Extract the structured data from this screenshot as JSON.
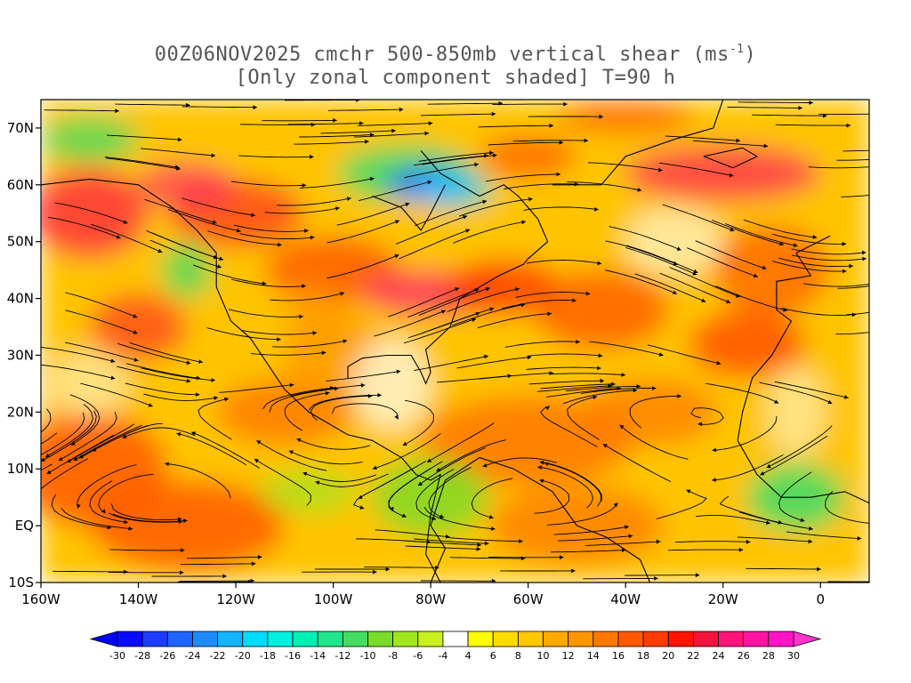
{
  "title": {
    "line1_pre": "00Z06NOV2025 cmchr 500-850mb vertical shear (ms",
    "line1_sup": "-1",
    "line1_post": ")",
    "line2": "[Only zonal component shaded] T=90 h"
  },
  "map": {
    "lon_range": [
      -160,
      10
    ],
    "lat_range": [
      -10,
      75
    ],
    "lat_ticks": [
      {
        "value": 70,
        "label": "70N"
      },
      {
        "value": 60,
        "label": "60N"
      },
      {
        "value": 50,
        "label": "50N"
      },
      {
        "value": 40,
        "label": "40N"
      },
      {
        "value": 30,
        "label": "30N"
      },
      {
        "value": 20,
        "label": "20N"
      },
      {
        "value": 10,
        "label": "10N"
      },
      {
        "value": 0,
        "label": "EQ"
      },
      {
        "value": -10,
        "label": "10S"
      }
    ],
    "lon_ticks": [
      {
        "value": -160,
        "label": "160W"
      },
      {
        "value": -140,
        "label": "140W"
      },
      {
        "value": -120,
        "label": "120W"
      },
      {
        "value": -100,
        "label": "100W"
      },
      {
        "value": -80,
        "label": "80W"
      },
      {
        "value": -60,
        "label": "60W"
      },
      {
        "value": -40,
        "label": "40W"
      },
      {
        "value": -20,
        "label": "20W"
      },
      {
        "value": 0,
        "label": "0"
      }
    ]
  },
  "colorbar": {
    "low_arrow_color": "#0000ff",
    "high_arrow_color": "#ff33cc",
    "boundaries": [
      "-30",
      "-28",
      "-26",
      "-24",
      "-22",
      "-20",
      "-18",
      "-16",
      "-14",
      "-12",
      "-10",
      "-8",
      "-6",
      "-4",
      "4",
      "6",
      "8",
      "10",
      "12",
      "14",
      "16",
      "18",
      "20",
      "22",
      "24",
      "26",
      "28",
      "30"
    ],
    "colors": [
      "#0a0aff",
      "#1e3cff",
      "#1e64ff",
      "#1e8cff",
      "#14b4ff",
      "#00dcff",
      "#00f0e0",
      "#00f0b4",
      "#20e68c",
      "#46dc64",
      "#78dc28",
      "#a0e61e",
      "#c8f01e",
      "#ffffff",
      "#ffff00",
      "#ffdc00",
      "#ffc800",
      "#ffaa00",
      "#ff9600",
      "#ff7800",
      "#ff5a00",
      "#ff3c00",
      "#ff1400",
      "#f0143c",
      "#ff1478",
      "#ff14a0",
      "#ff14c8"
    ]
  }
}
